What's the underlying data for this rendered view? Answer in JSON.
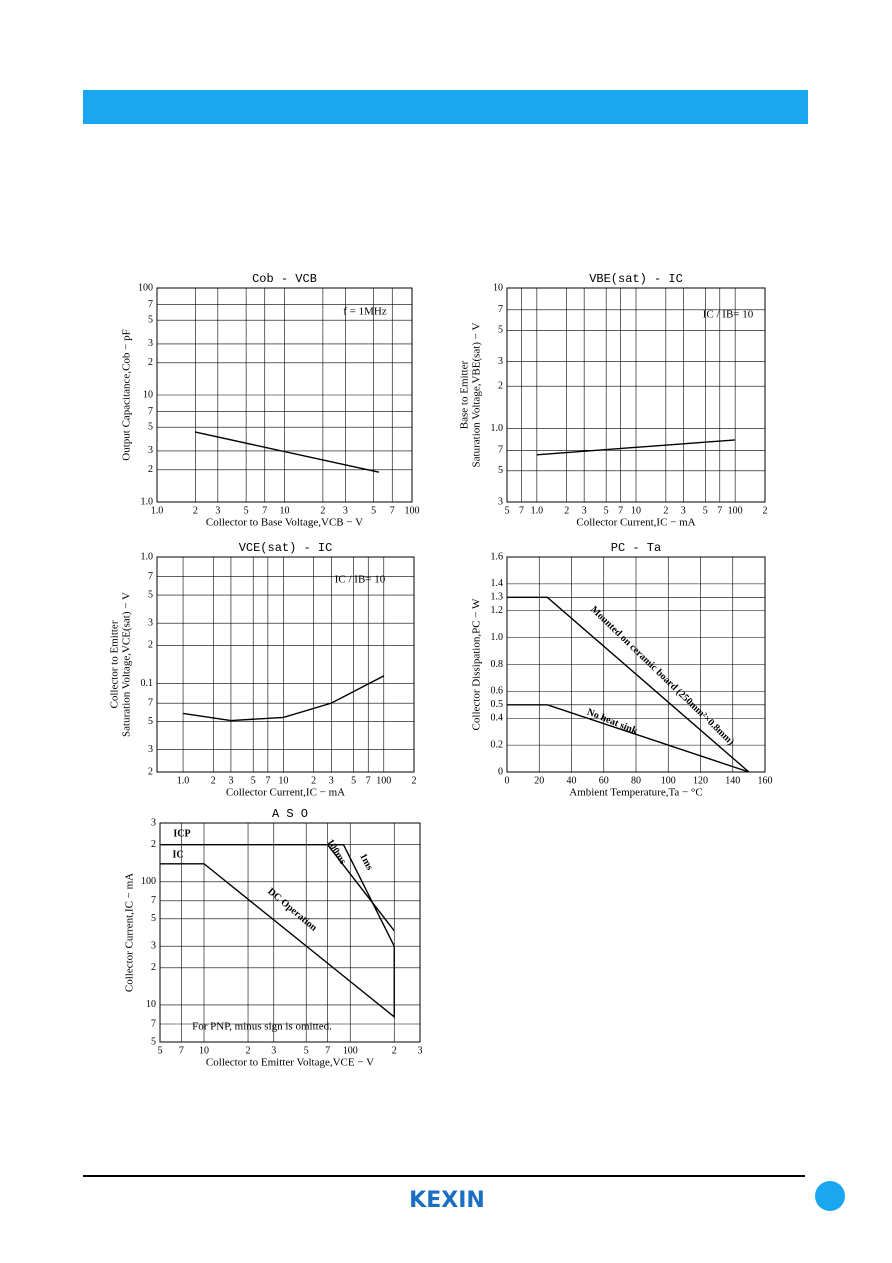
{
  "chart_data": [
    {
      "type": "line",
      "title": "Cob - VCB",
      "xlabel": "Collector to Base Voltage,VCB − V",
      "ylabel": [
        "Output Capacitance,Cob − pF"
      ],
      "annotations": [
        "f = 1MHz"
      ],
      "xlog": true,
      "ylog": true,
      "grid": true,
      "xlim": [
        1,
        100
      ],
      "xticks": [
        {
          "value": 1,
          "label": "1.0"
        },
        2,
        3,
        5,
        7,
        10,
        {
          "value": 20,
          "label": "2"
        },
        {
          "value": 30,
          "label": "3"
        },
        {
          "value": 50,
          "label": "5"
        },
        {
          "value": 70,
          "label": "7"
        },
        100
      ],
      "ylim": [
        1,
        100
      ],
      "yticks": [
        {
          "value": 1,
          "label": "1.0"
        },
        2,
        3,
        5,
        7,
        10,
        {
          "value": 20,
          "label": "2"
        },
        {
          "value": 30,
          "label": "3"
        },
        {
          "value": 50,
          "label": "5"
        },
        {
          "value": 70,
          "label": "7"
        },
        100
      ],
      "series": [
        {
          "color": "#000000",
          "x": [
            2,
            55
          ],
          "values": [
            4.5,
            1.9
          ]
        }
      ]
    },
    {
      "type": "line",
      "title": "VBE(sat) - IC",
      "xlabel": "Collector Current,IC − mA",
      "ylabel": [
        "Base to Emitter",
        "Saturation Voltage,VBE(sat) − V"
      ],
      "annotations": [
        "IC / IB= 10"
      ],
      "xlog": true,
      "ylog": true,
      "grid": true,
      "xlim": [
        0.5,
        200
      ],
      "xticks": [
        {
          "value": 0.5,
          "label": "5"
        },
        {
          "value": 0.7,
          "label": "7"
        },
        {
          "value": 1,
          "label": "1.0"
        },
        2,
        3,
        5,
        7,
        10,
        {
          "value": 20,
          "label": "2"
        },
        {
          "value": 30,
          "label": "3"
        },
        {
          "value": 50,
          "label": "5"
        },
        {
          "value": 70,
          "label": "7"
        },
        100,
        {
          "value": 200,
          "label": "2"
        }
      ],
      "ylim": [
        0.3,
        10
      ],
      "yticks": [
        {
          "value": 0.3,
          "label": "3"
        },
        {
          "value": 0.5,
          "label": "5"
        },
        {
          "value": 0.7,
          "label": "7"
        },
        {
          "value": 1,
          "label": "1.0"
        },
        2,
        3,
        5,
        7,
        10
      ],
      "series": [
        {
          "color": "#000000",
          "x": [
            1,
            100
          ],
          "values": [
            0.65,
            0.83
          ]
        }
      ]
    },
    {
      "type": "line",
      "title": "VCE(sat) - IC",
      "xlabel": "Collector Current,IC − mA",
      "ylabel": [
        "Collector to Emitter",
        "Saturation Voltage,VCE(sat) − V"
      ],
      "annotations": [
        "IC / IB= 10"
      ],
      "xlog": true,
      "ylog": true,
      "grid": true,
      "xlim": [
        0.55,
        200
      ],
      "xticks": [
        {
          "value": 1,
          "label": "1.0"
        },
        2,
        3,
        5,
        7,
        10,
        {
          "value": 20,
          "label": "2"
        },
        {
          "value": 30,
          "label": "3"
        },
        {
          "value": 50,
          "label": "5"
        },
        {
          "value": 70,
          "label": "7"
        },
        100,
        {
          "value": 200,
          "label": "2"
        }
      ],
      "ylim": [
        0.02,
        1
      ],
      "yticks": [
        {
          "value": 0.02,
          "label": "2"
        },
        {
          "value": 0.03,
          "label": "3"
        },
        {
          "value": 0.05,
          "label": "5"
        },
        {
          "value": 0.07,
          "label": "7"
        },
        0.1,
        {
          "value": 0.2,
          "label": "2"
        },
        {
          "value": 0.3,
          "label": "3"
        },
        {
          "value": 0.5,
          "label": "5"
        },
        {
          "value": 0.7,
          "label": "7"
        },
        {
          "value": 1,
          "label": "1.0"
        }
      ],
      "series": [
        {
          "color": "#000000",
          "x": [
            1,
            3,
            10,
            30,
            100
          ],
          "values": [
            0.058,
            0.051,
            0.054,
            0.07,
            0.115
          ]
        }
      ]
    },
    {
      "type": "line",
      "title": "PC - Ta",
      "xlabel": "Ambient Temperature,Ta − °C",
      "ylabel": [
        "Collector Dissipation,PC − W"
      ],
      "annotations": [],
      "xlog": false,
      "ylog": false,
      "grid": true,
      "xlim": [
        0,
        160
      ],
      "xticks": [
        0,
        20,
        40,
        60,
        80,
        100,
        120,
        140,
        160
      ],
      "ylim": [
        0,
        1.6
      ],
      "yticks": [
        0,
        0.2,
        0.4,
        0.5,
        0.6,
        0.8,
        {
          "value": 1,
          "label": "1.0"
        },
        1.2,
        1.3,
        1.4,
        1.6
      ],
      "series": [
        {
          "name": "Mounted on ceramic board (250mm²×0.8mm)",
          "color": "#000000",
          "x": [
            0,
            25,
            150
          ],
          "values": [
            1.3,
            1.3,
            0
          ]
        },
        {
          "name": "No heat sink",
          "color": "#000000",
          "x": [
            0,
            25,
            150
          ],
          "values": [
            0.5,
            0.5,
            0
          ]
        }
      ]
    },
    {
      "type": "line",
      "title": "A S O",
      "xlabel": "Collector to Emitter Voltage,VCE − V",
      "ylabel": [
        "Collector Current,IC − mA"
      ],
      "annotations": [
        "For PNP, minus sign is omitted."
      ],
      "xlog": true,
      "ylog": true,
      "grid": true,
      "xlim": [
        5,
        300
      ],
      "xticks": [
        5,
        7,
        10,
        {
          "value": 20,
          "label": "2"
        },
        {
          "value": 30,
          "label": "3"
        },
        {
          "value": 50,
          "label": "5"
        },
        {
          "value": 70,
          "label": "7"
        },
        100,
        {
          "value": 200,
          "label": "2"
        },
        {
          "value": 300,
          "label": "3"
        }
      ],
      "ylim": [
        5,
        300
      ],
      "yticks": [
        5,
        7,
        10,
        {
          "value": 20,
          "label": "2"
        },
        {
          "value": 30,
          "label": "3"
        },
        {
          "value": 50,
          "label": "5"
        },
        {
          "value": 70,
          "label": "7"
        },
        100,
        {
          "value": 200,
          "label": "2"
        },
        {
          "value": 300,
          "label": "3"
        }
      ],
      "series": [
        {
          "name": "ICP",
          "color": "#000000",
          "x": [
            5,
            90
          ],
          "values": [
            200,
            200
          ]
        },
        {
          "name": "IC",
          "color": "#000000",
          "x": [
            5,
            10
          ],
          "values": [
            140,
            140
          ]
        },
        {
          "name": "1ms",
          "color": "#000000",
          "x": [
            90,
            200
          ],
          "values": [
            200,
            30
          ]
        },
        {
          "name": "100ms",
          "color": "#000000",
          "x": [
            70,
            200
          ],
          "values": [
            200,
            40
          ]
        },
        {
          "name": "DC Operation",
          "color": "#000000",
          "x": [
            10,
            200,
            200
          ],
          "values": [
            140,
            8,
            30
          ]
        }
      ]
    }
  ],
  "footer": {
    "logo": "KEXIN"
  }
}
